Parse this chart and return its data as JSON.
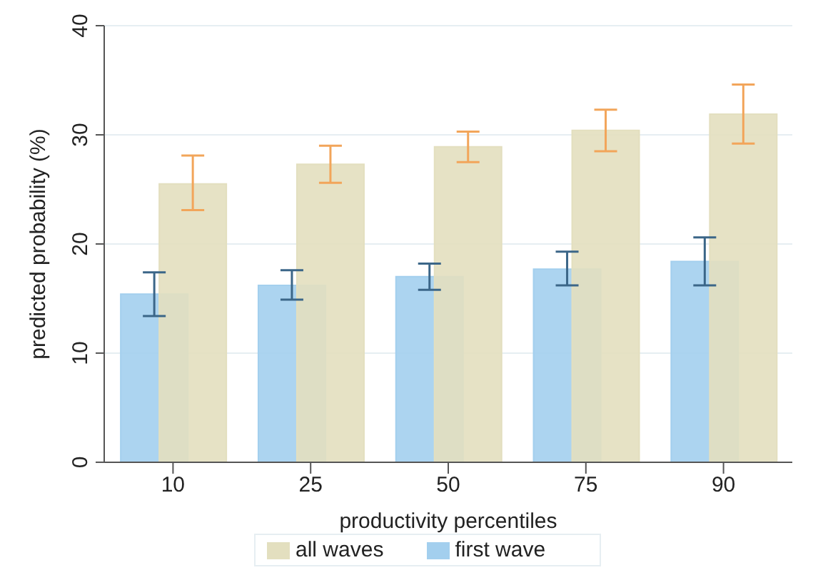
{
  "chart_data": {
    "type": "bar",
    "xlabel": "productivity percentiles",
    "ylabel": "predicted probability (%)",
    "categories": [
      "10",
      "25",
      "50",
      "75",
      "90"
    ],
    "series": [
      {
        "name": "first wave",
        "color": "#a3cfee",
        "values": [
          15.4,
          16.2,
          17.0,
          17.7,
          18.4
        ],
        "errors": [
          [
            13.4,
            17.4
          ],
          [
            14.9,
            17.6
          ],
          [
            15.8,
            18.2
          ],
          [
            16.2,
            19.3
          ],
          [
            16.2,
            20.6
          ]
        ]
      },
      {
        "name": "all waves",
        "color": "#e3dfbf",
        "values": [
          25.5,
          27.3,
          28.9,
          30.4,
          31.9
        ],
        "errors": [
          [
            23.1,
            28.1
          ],
          [
            25.6,
            29.0
          ],
          [
            27.5,
            30.3
          ],
          [
            28.5,
            32.3
          ],
          [
            29.2,
            34.6
          ]
        ]
      }
    ],
    "ylim": [
      0,
      40
    ],
    "yticks": [
      0,
      10,
      20,
      30,
      40
    ],
    "grid": "y",
    "legend": "bottom"
  }
}
